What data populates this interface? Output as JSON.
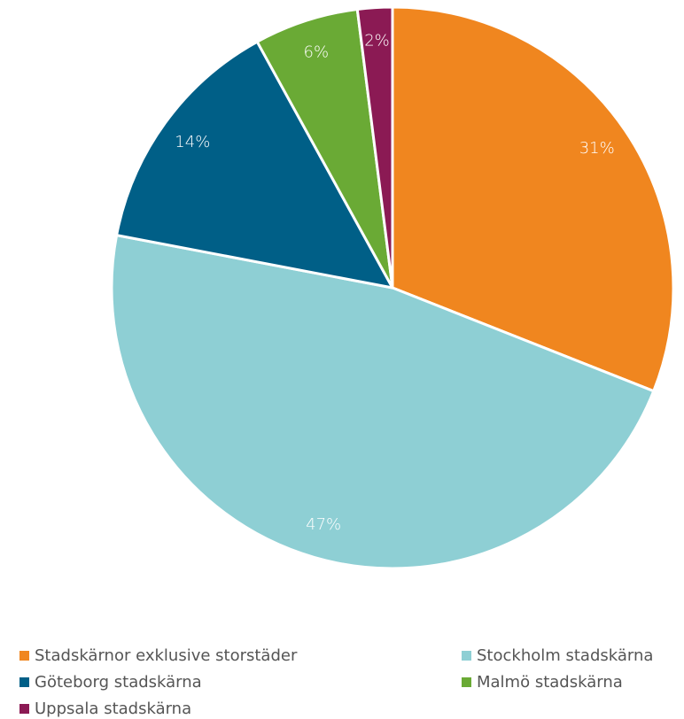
{
  "chart_data": {
    "type": "pie",
    "categories": [
      "Stadskärnor exklusive storstäder",
      "Stockholm stadskärna",
      "Göteborg stadskärna",
      "Malmö stadskärna",
      "Uppsala stadskärna"
    ],
    "values": [
      31,
      47,
      14,
      6,
      2
    ],
    "value_labels": [
      "31%",
      "47%",
      "14%",
      "6%",
      "2%"
    ],
    "colors": [
      "#f0861f",
      "#8ecfd4",
      "#005f87",
      "#6aaa35",
      "#8b1a54"
    ],
    "legend": "bottom"
  }
}
